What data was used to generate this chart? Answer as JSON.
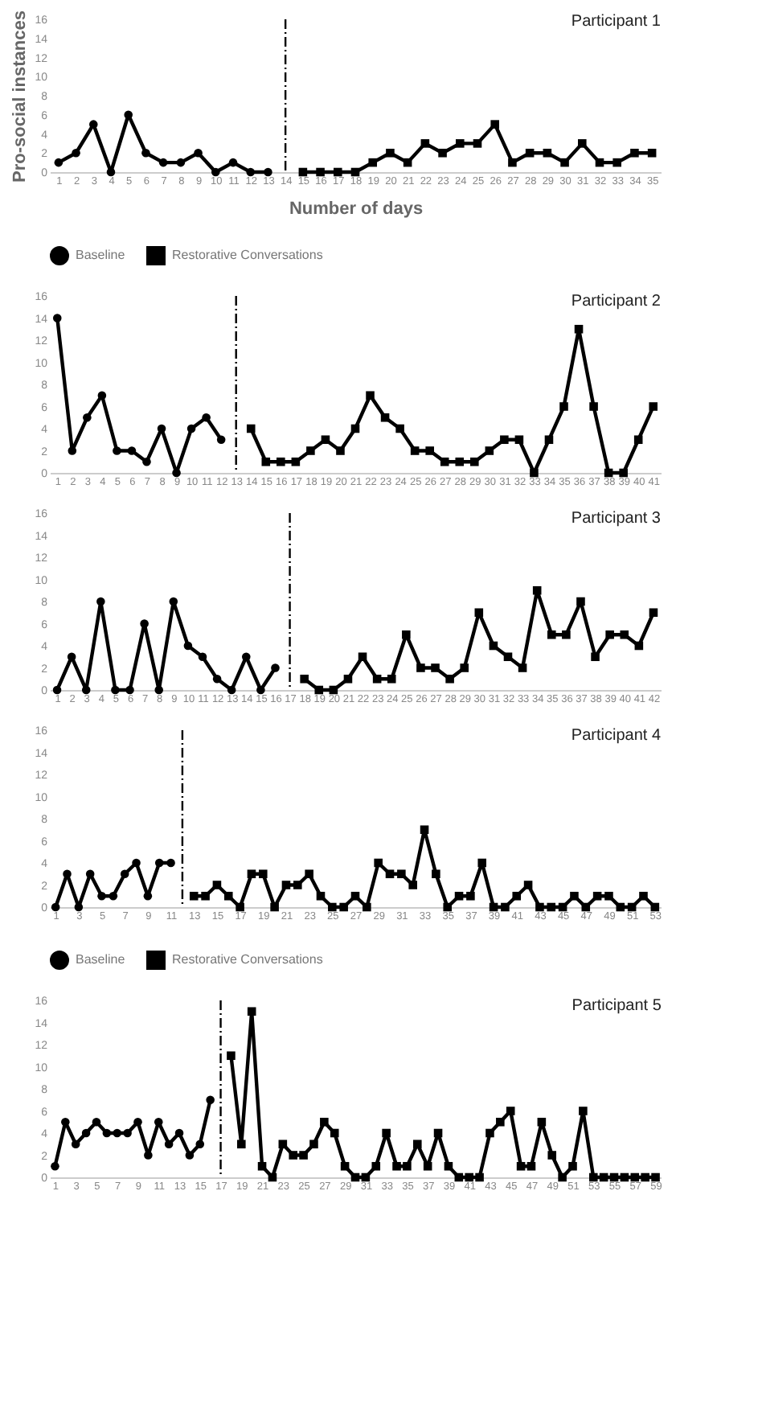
{
  "chart_data": [
    {
      "type": "line",
      "title": "Participant 1",
      "xlabel": "Number of days",
      "ylabel": "Pro-social instances",
      "xlim": [
        0.5,
        35.5
      ],
      "xticks": [
        1,
        2,
        3,
        4,
        5,
        6,
        7,
        8,
        9,
        10,
        11,
        12,
        13,
        14,
        15,
        16,
        17,
        18,
        19,
        20,
        21,
        22,
        23,
        24,
        25,
        26,
        27,
        28,
        29,
        30,
        31,
        32,
        33,
        34,
        35
      ],
      "ylim": [
        0,
        16
      ],
      "yticks": [
        0,
        2,
        4,
        6,
        8,
        10,
        12,
        14,
        16
      ],
      "grid": false,
      "legend": "bottom",
      "line_style": "solid",
      "series": [
        {
          "name": "Baseline",
          "color": "#000000",
          "marker": "circle",
          "x": [
            1,
            2,
            3,
            4,
            5,
            6,
            7,
            8,
            9,
            10,
            11,
            12,
            13
          ],
          "values": [
            1,
            2,
            5,
            0,
            6,
            2,
            1,
            1,
            2,
            0,
            1,
            0,
            0
          ]
        },
        {
          "name": "Restorative Conversations",
          "color": "#000000",
          "marker": "square",
          "x": [
            15,
            16,
            17,
            18,
            19,
            20,
            21,
            22,
            23,
            24,
            25,
            26,
            27,
            28,
            29,
            30,
            31,
            32,
            33,
            34,
            35
          ],
          "values": [
            0,
            0,
            0,
            0,
            1,
            2,
            1,
            3,
            2,
            3,
            3,
            5,
            1,
            2,
            2,
            1,
            3,
            1,
            1,
            2,
            2
          ]
        }
      ],
      "ref_lines": [
        {
          "axis": "x",
          "value": 14,
          "color": "#000000",
          "line_style": "dashed"
        }
      ]
    },
    {
      "type": "line",
      "title": "Participant 2",
      "xlim": [
        0.5,
        41.5
      ],
      "xticks": [
        1,
        2,
        3,
        4,
        5,
        6,
        7,
        8,
        9,
        10,
        11,
        12,
        13,
        14,
        15,
        16,
        17,
        18,
        19,
        20,
        21,
        22,
        23,
        24,
        25,
        26,
        27,
        28,
        29,
        30,
        31,
        32,
        33,
        34,
        35,
        36,
        37,
        38,
        39,
        40,
        41
      ],
      "ylim": [
        0,
        16
      ],
      "yticks": [
        0,
        2,
        4,
        6,
        8,
        10,
        12,
        14,
        16
      ],
      "grid": false,
      "line_style": "solid",
      "series": [
        {
          "color": "#000000",
          "marker": "circle",
          "x": [
            1,
            2,
            3,
            4,
            5,
            6,
            7,
            8,
            9,
            10,
            11,
            12
          ],
          "values": [
            14,
            2,
            5,
            7,
            2,
            2,
            1,
            4,
            0,
            4,
            5,
            3
          ]
        },
        {
          "color": "#000000",
          "marker": "square",
          "x": [
            14,
            15,
            16,
            17,
            18,
            19,
            20,
            21,
            22,
            23,
            24,
            25,
            26,
            27,
            28,
            29,
            30,
            31,
            32,
            33,
            34,
            35,
            36,
            37,
            38,
            39,
            40,
            41
          ],
          "values": [
            4,
            1,
            1,
            1,
            2,
            3,
            2,
            4,
            7,
            5,
            4,
            2,
            2,
            1,
            1,
            1,
            2,
            3,
            3,
            0,
            3,
            6,
            13,
            6,
            0,
            0,
            3,
            6
          ]
        }
      ],
      "ref_lines": [
        {
          "axis": "x",
          "value": 13,
          "color": "#000000",
          "line_style": "dashed"
        }
      ]
    },
    {
      "type": "line",
      "title": "Participant 3",
      "xlim": [
        0.5,
        42.5
      ],
      "xticks": [
        1,
        2,
        3,
        4,
        5,
        6,
        7,
        8,
        9,
        10,
        11,
        12,
        13,
        14,
        15,
        16,
        17,
        18,
        19,
        20,
        21,
        22,
        23,
        24,
        25,
        26,
        27,
        28,
        29,
        30,
        31,
        32,
        33,
        34,
        35,
        36,
        37,
        38,
        39,
        40,
        41,
        42
      ],
      "ylim": [
        0,
        16
      ],
      "yticks": [
        0,
        2,
        4,
        6,
        8,
        10,
        12,
        14,
        16
      ],
      "grid": false,
      "line_style": "solid",
      "series": [
        {
          "color": "#000000",
          "marker": "circle",
          "x": [
            1,
            2,
            3,
            4,
            5,
            6,
            7,
            8,
            9,
            10,
            11,
            12,
            13,
            14,
            15,
            16
          ],
          "values": [
            0,
            3,
            0,
            8,
            0,
            0,
            6,
            0,
            8,
            4,
            3,
            1,
            0,
            3,
            0,
            2
          ]
        },
        {
          "color": "#000000",
          "marker": "square",
          "x": [
            18,
            19,
            20,
            21,
            22,
            23,
            24,
            25,
            26,
            27,
            28,
            29,
            30,
            31,
            32,
            33,
            34,
            35,
            36,
            37,
            38,
            39,
            40,
            41,
            42
          ],
          "values": [
            1,
            0,
            0,
            1,
            3,
            1,
            1,
            5,
            2,
            2,
            1,
            2,
            7,
            4,
            3,
            2,
            9,
            5,
            5,
            8,
            3,
            5,
            5,
            4,
            7
          ]
        }
      ],
      "ref_lines": [
        {
          "axis": "x",
          "value": 17,
          "color": "#000000",
          "line_style": "dashed"
        }
      ]
    },
    {
      "type": "line",
      "title": "Participant 4",
      "xlim": [
        0.5,
        53.5
      ],
      "xticks": [
        1,
        3,
        5,
        7,
        9,
        11,
        13,
        15,
        17,
        19,
        21,
        23,
        25,
        27,
        29,
        31,
        33,
        35,
        37,
        39,
        41,
        43,
        45,
        47,
        49,
        51,
        53
      ],
      "ylim": [
        0,
        16
      ],
      "yticks": [
        0,
        2,
        4,
        6,
        8,
        10,
        12,
        14,
        16
      ],
      "grid": false,
      "legend": "bottom",
      "line_style": "solid",
      "series": [
        {
          "name": "Baseline",
          "color": "#000000",
          "marker": "circle",
          "x": [
            1,
            2,
            3,
            4,
            5,
            6,
            7,
            8,
            9,
            10,
            11
          ],
          "values": [
            0,
            3,
            0,
            3,
            1,
            1,
            3,
            4,
            1,
            4,
            4
          ]
        },
        {
          "name": "Restorative Conversations",
          "color": "#000000",
          "marker": "square",
          "x": [
            13,
            14,
            15,
            16,
            17,
            18,
            19,
            20,
            21,
            22,
            23,
            24,
            25,
            26,
            27,
            28,
            29,
            30,
            31,
            32,
            33,
            34,
            35,
            36,
            37,
            38,
            39,
            40,
            41,
            42,
            43,
            44,
            45,
            46,
            47,
            48,
            49,
            50,
            51,
            52,
            53
          ],
          "values": [
            1,
            1,
            2,
            1,
            0,
            3,
            3,
            0,
            2,
            2,
            3,
            1,
            0,
            0,
            1,
            0,
            4,
            3,
            3,
            2,
            7,
            3,
            0,
            1,
            1,
            4,
            0,
            0,
            1,
            2,
            0,
            0,
            0,
            1,
            0,
            1,
            1,
            0,
            0,
            1,
            0
          ]
        }
      ],
      "ref_lines": [
        {
          "axis": "x",
          "value": 12,
          "color": "#000000",
          "line_style": "dashed"
        }
      ]
    },
    {
      "type": "line",
      "title": "Participant 5",
      "xlim": [
        0.5,
        59.5
      ],
      "xticks": [
        1,
        3,
        5,
        7,
        9,
        11,
        13,
        15,
        17,
        19,
        21,
        23,
        25,
        27,
        29,
        31,
        33,
        35,
        37,
        39,
        41,
        43,
        45,
        47,
        49,
        51,
        53,
        55,
        57,
        59
      ],
      "ylim": [
        0,
        16
      ],
      "yticks": [
        0,
        2,
        4,
        6,
        8,
        10,
        12,
        14,
        16
      ],
      "grid": false,
      "line_style": "solid",
      "series": [
        {
          "color": "#000000",
          "marker": "circle",
          "x": [
            1,
            2,
            3,
            4,
            5,
            6,
            7,
            8,
            9,
            10,
            11,
            12,
            13,
            14,
            15,
            16
          ],
          "values": [
            1,
            5,
            3,
            4,
            5,
            4,
            4,
            4,
            5,
            2,
            5,
            3,
            4,
            2,
            3,
            7
          ]
        },
        {
          "color": "#000000",
          "marker": "square",
          "x": [
            18,
            19,
            20,
            21,
            22,
            23,
            24,
            25,
            26,
            27,
            28,
            29,
            30,
            31,
            32,
            33,
            34,
            35,
            36,
            37,
            38,
            39,
            40,
            41,
            42,
            43,
            44,
            45,
            46,
            47,
            48,
            49,
            50,
            51,
            52,
            53,
            54,
            55,
            56,
            57,
            58,
            59
          ],
          "values": [
            11,
            3,
            15,
            1,
            0,
            3,
            2,
            2,
            3,
            5,
            4,
            1,
            0,
            0,
            1,
            4,
            1,
            1,
            3,
            1,
            4,
            1,
            0,
            0,
            0,
            4,
            5,
            6,
            1,
            1,
            5,
            2,
            0,
            1,
            6,
            0,
            0,
            0,
            0,
            0,
            0,
            0
          ]
        }
      ],
      "ref_lines": [
        {
          "axis": "x",
          "value": 17,
          "color": "#000000",
          "line_style": "dashed"
        }
      ]
    }
  ]
}
